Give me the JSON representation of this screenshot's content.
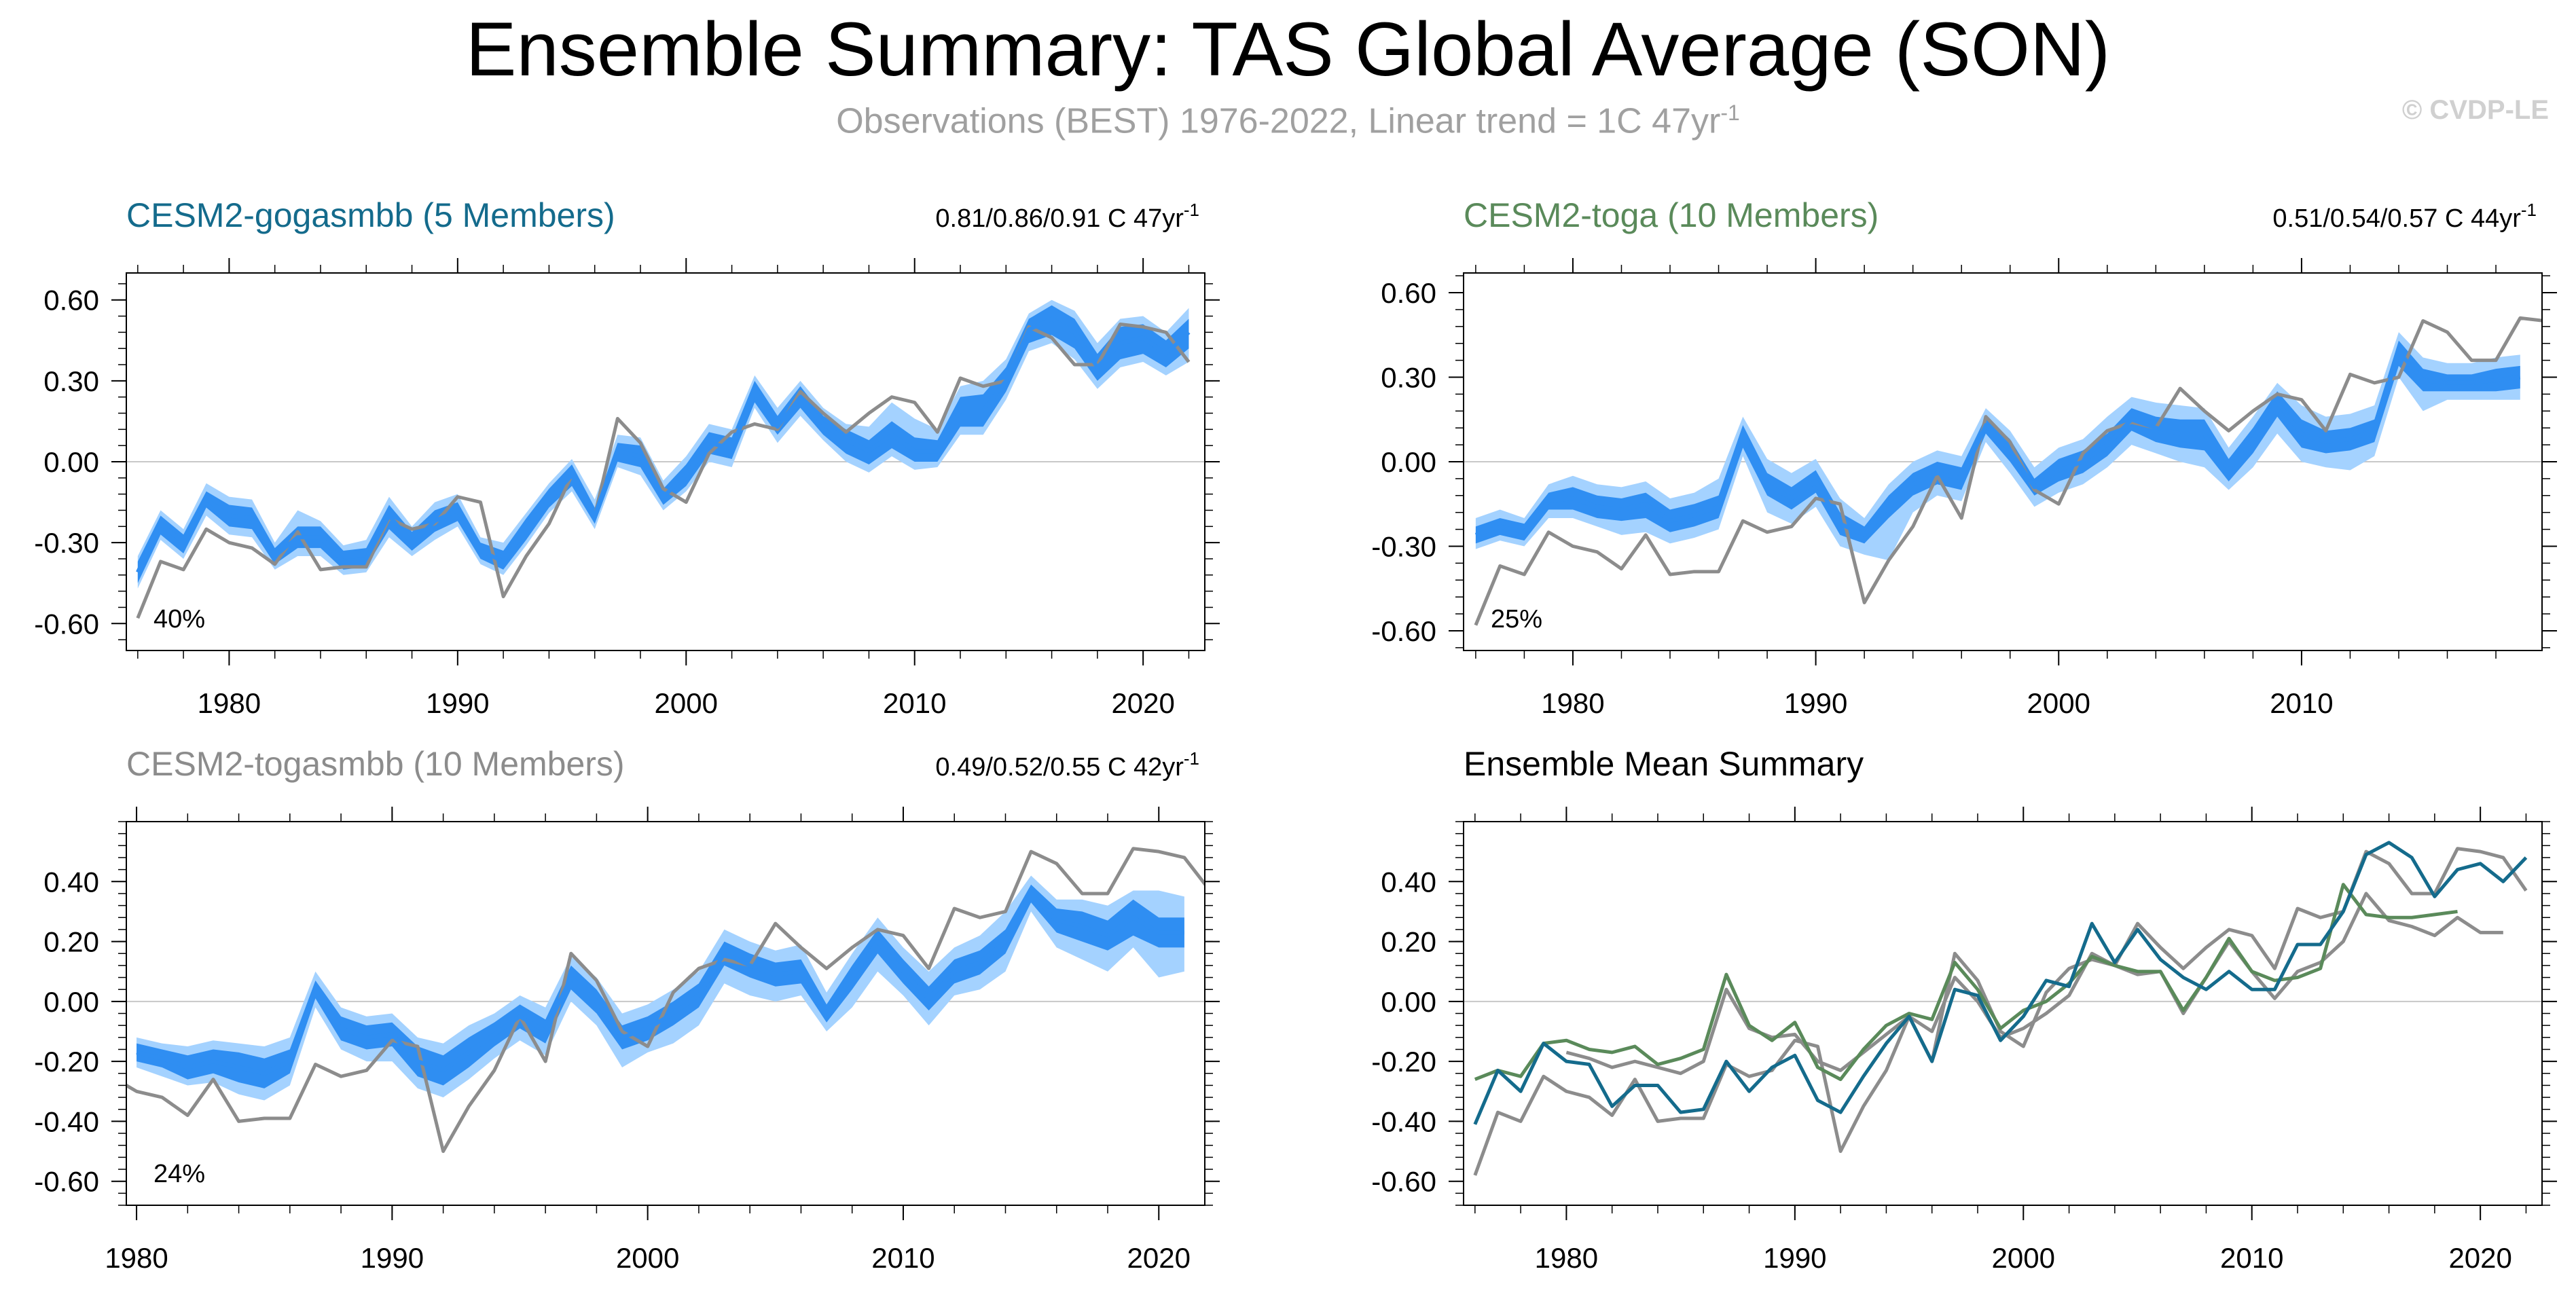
{
  "title": "Ensemble Summary: TAS Global Average (SON)",
  "subtitle": {
    "text": "Observations (BEST) 1976-2022, Linear trend = 1C 47yr",
    "sup": "-1"
  },
  "copyright": "© CVDP-LE",
  "colors": {
    "obs": "#8c8c8c",
    "band_outer": "#a4d2ff",
    "band_inner": "#2f8ef2",
    "zero_line": "#c8c8c8",
    "gogasmbb": "#146b8c",
    "toga": "#5a8a5a",
    "togasmbb": "#8c8c8c"
  },
  "chart_data": [
    {
      "id": "gogasmbb",
      "type": "line",
      "title": "CESM2-gogasmbb (5 Members)",
      "title_color": "#146b8c",
      "trend": "0.81/0.86/0.91 C 47yr",
      "trend_sup": "-1",
      "percent": "40%",
      "xlim": [
        1975.5,
        2022.7
      ],
      "ylim": [
        -0.7,
        0.7
      ],
      "yticks": [
        -0.6,
        -0.3,
        0.0,
        0.3,
        0.6
      ],
      "ytick_labels": [
        "-0.60",
        "-0.30",
        "0.00",
        "0.30",
        "0.60"
      ],
      "xticks": [
        1980,
        1990,
        2000,
        2010,
        2020
      ],
      "xtick_labels": [
        "1980",
        "1990",
        "2000",
        "2010",
        "2020"
      ],
      "obs_start": 1976,
      "obs": [
        -0.58,
        -0.37,
        -0.4,
        -0.25,
        -0.3,
        -0.32,
        -0.38,
        -0.26,
        -0.4,
        -0.39,
        -0.39,
        -0.21,
        -0.25,
        -0.23,
        -0.13,
        -0.15,
        -0.5,
        -0.35,
        -0.23,
        -0.05,
        -0.2,
        0.16,
        0.07,
        -0.1,
        -0.15,
        0.03,
        0.11,
        0.14,
        0.12,
        0.26,
        0.18,
        0.11,
        0.18,
        0.24,
        0.22,
        0.11,
        0.31,
        0.28,
        0.3,
        0.5,
        0.46,
        0.36,
        0.36,
        0.51,
        0.5,
        0.48,
        0.37
      ],
      "model_start": 1976,
      "model_mean": [
        -0.41,
        -0.23,
        -0.3,
        -0.14,
        -0.2,
        -0.21,
        -0.35,
        -0.28,
        -0.28,
        -0.37,
        -0.36,
        -0.2,
        -0.3,
        -0.22,
        -0.18,
        -0.33,
        -0.37,
        -0.25,
        -0.14,
        -0.05,
        -0.2,
        0.04,
        0.02,
        -0.13,
        -0.05,
        0.07,
        0.05,
        0.26,
        0.13,
        0.24,
        0.14,
        0.08,
        0.04,
        0.1,
        0.04,
        0.04,
        0.19,
        0.19,
        0.3,
        0.49,
        0.53,
        0.48,
        0.35,
        0.44,
        0.46,
        0.4,
        0.48
      ],
      "model_min": [
        -0.45,
        -0.27,
        -0.34,
        -0.17,
        -0.24,
        -0.25,
        -0.38,
        -0.32,
        -0.32,
        -0.4,
        -0.39,
        -0.25,
        -0.33,
        -0.26,
        -0.22,
        -0.36,
        -0.4,
        -0.29,
        -0.17,
        -0.09,
        -0.23,
        0.0,
        -0.02,
        -0.16,
        -0.09,
        0.03,
        0.01,
        0.22,
        0.1,
        0.2,
        0.1,
        0.03,
        -0.01,
        0.05,
        0.0,
        0.0,
        0.13,
        0.13,
        0.26,
        0.44,
        0.47,
        0.42,
        0.3,
        0.38,
        0.4,
        0.35,
        0.42
      ],
      "model_max": [
        -0.37,
        -0.2,
        -0.27,
        -0.11,
        -0.16,
        -0.17,
        -0.32,
        -0.24,
        -0.24,
        -0.33,
        -0.32,
        -0.16,
        -0.26,
        -0.18,
        -0.15,
        -0.3,
        -0.33,
        -0.21,
        -0.1,
        -0.01,
        -0.17,
        0.07,
        0.06,
        -0.1,
        -0.01,
        0.11,
        0.09,
        0.3,
        0.17,
        0.28,
        0.17,
        0.12,
        0.08,
        0.15,
        0.09,
        0.08,
        0.24,
        0.25,
        0.35,
        0.53,
        0.58,
        0.53,
        0.4,
        0.5,
        0.51,
        0.45,
        0.53
      ],
      "model_outer_min": [
        -0.47,
        -0.29,
        -0.36,
        -0.2,
        -0.27,
        -0.28,
        -0.4,
        -0.35,
        -0.35,
        -0.42,
        -0.41,
        -0.28,
        -0.35,
        -0.29,
        -0.24,
        -0.38,
        -0.42,
        -0.31,
        -0.19,
        -0.11,
        -0.25,
        -0.02,
        -0.05,
        -0.18,
        -0.11,
        0.0,
        -0.02,
        0.2,
        0.07,
        0.17,
        0.08,
        0.0,
        -0.04,
        0.02,
        -0.03,
        -0.02,
        0.1,
        0.1,
        0.23,
        0.41,
        0.44,
        0.38,
        0.27,
        0.35,
        0.37,
        0.32,
        0.37
      ],
      "model_outer_max": [
        -0.35,
        -0.18,
        -0.25,
        -0.08,
        -0.13,
        -0.14,
        -0.3,
        -0.18,
        -0.22,
        -0.31,
        -0.29,
        -0.13,
        -0.24,
        -0.15,
        -0.12,
        -0.28,
        -0.3,
        -0.19,
        -0.08,
        0.01,
        -0.14,
        0.1,
        0.09,
        -0.07,
        0.02,
        0.14,
        0.12,
        0.32,
        0.2,
        0.3,
        0.2,
        0.14,
        0.13,
        0.22,
        0.16,
        0.12,
        0.28,
        0.3,
        0.38,
        0.55,
        0.6,
        0.56,
        0.44,
        0.53,
        0.54,
        0.48,
        0.57
      ]
    },
    {
      "id": "toga",
      "type": "line",
      "title": "CESM2-toga (10 Members)",
      "title_color": "#5a8a5a",
      "trend": "0.51/0.54/0.57 C 44yr",
      "trend_sup": "-1",
      "percent": "25%",
      "xlim": [
        1975.5,
        2019.9
      ],
      "ylim": [
        -0.67,
        0.67
      ],
      "yticks": [
        -0.6,
        -0.3,
        0.0,
        0.3,
        0.6
      ],
      "ytick_labels": [
        "-0.60",
        "-0.30",
        "0.00",
        "0.30",
        "0.60"
      ],
      "xticks": [
        1980,
        1990,
        2000,
        2010
      ],
      "xtick_labels": [
        "1980",
        "1990",
        "2000",
        "2010"
      ],
      "obs_start": 1976,
      "obs": [
        -0.58,
        -0.37,
        -0.4,
        -0.25,
        -0.3,
        -0.32,
        -0.38,
        -0.26,
        -0.4,
        -0.39,
        -0.39,
        -0.21,
        -0.25,
        -0.23,
        -0.13,
        -0.15,
        -0.5,
        -0.35,
        -0.23,
        -0.05,
        -0.2,
        0.16,
        0.07,
        -0.1,
        -0.15,
        0.03,
        0.11,
        0.14,
        0.12,
        0.26,
        0.18,
        0.11,
        0.18,
        0.24,
        0.22,
        0.11,
        0.31,
        0.28,
        0.3,
        0.5,
        0.46,
        0.36,
        0.36,
        0.51,
        0.5
      ],
      "model_start": 1976,
      "model_mean": [
        -0.26,
        -0.23,
        -0.25,
        -0.14,
        -0.13,
        -0.16,
        -0.17,
        -0.15,
        -0.21,
        -0.19,
        -0.16,
        0.09,
        -0.08,
        -0.13,
        -0.07,
        -0.22,
        -0.26,
        -0.16,
        -0.08,
        -0.04,
        -0.06,
        0.13,
        0.04,
        -0.09,
        -0.03,
        0.0,
        0.06,
        0.15,
        0.12,
        0.1,
        0.1,
        -0.03,
        0.08,
        0.21,
        0.1,
        0.07,
        0.08,
        0.11,
        0.39,
        0.29,
        0.28,
        0.28,
        0.29,
        0.3
      ],
      "model_min": [
        -0.29,
        -0.26,
        -0.28,
        -0.17,
        -0.17,
        -0.2,
        -0.21,
        -0.2,
        -0.25,
        -0.23,
        -0.2,
        0.05,
        -0.12,
        -0.17,
        -0.11,
        -0.26,
        -0.29,
        -0.2,
        -0.12,
        -0.08,
        -0.1,
        0.1,
        0.0,
        -0.12,
        -0.07,
        -0.04,
        0.02,
        0.11,
        0.07,
        0.05,
        0.04,
        -0.07,
        0.03,
        0.16,
        0.05,
        0.03,
        0.04,
        0.07,
        0.34,
        0.25,
        0.25,
        0.25,
        0.25,
        0.26
      ],
      "model_max": [
        -0.23,
        -0.2,
        -0.22,
        -0.11,
        -0.09,
        -0.12,
        -0.13,
        -0.11,
        -0.17,
        -0.15,
        -0.12,
        0.13,
        -0.04,
        -0.09,
        -0.03,
        -0.18,
        -0.23,
        -0.12,
        -0.04,
        0.0,
        -0.02,
        0.16,
        0.08,
        -0.06,
        0.01,
        0.04,
        0.1,
        0.19,
        0.16,
        0.15,
        0.15,
        0.01,
        0.12,
        0.25,
        0.15,
        0.11,
        0.12,
        0.15,
        0.43,
        0.33,
        0.31,
        0.31,
        0.33,
        0.34
      ],
      "model_outer_min": [
        -0.31,
        -0.28,
        -0.3,
        -0.2,
        -0.2,
        -0.23,
        -0.26,
        -0.25,
        -0.29,
        -0.27,
        -0.24,
        0.02,
        -0.18,
        -0.22,
        -0.16,
        -0.3,
        -0.33,
        -0.35,
        -0.18,
        -0.12,
        -0.14,
        0.07,
        -0.04,
        -0.16,
        -0.11,
        -0.08,
        -0.02,
        0.06,
        0.03,
        0.0,
        -0.02,
        -0.1,
        -0.02,
        0.1,
        0.0,
        -0.02,
        -0.03,
        0.02,
        0.3,
        0.18,
        0.22,
        0.22,
        0.22,
        0.22
      ],
      "model_outer_max": [
        -0.2,
        -0.17,
        -0.2,
        -0.08,
        -0.05,
        -0.08,
        -0.09,
        -0.07,
        -0.13,
        -0.11,
        -0.06,
        0.16,
        0.01,
        -0.04,
        0.01,
        -0.13,
        -0.2,
        -0.08,
        0.0,
        0.04,
        0.02,
        0.19,
        0.11,
        -0.02,
        0.05,
        0.08,
        0.16,
        0.23,
        0.21,
        0.2,
        0.19,
        0.05,
        0.16,
        0.28,
        0.2,
        0.16,
        0.17,
        0.2,
        0.46,
        0.37,
        0.35,
        0.35,
        0.37,
        0.38
      ]
    },
    {
      "id": "togasmbb",
      "type": "line",
      "title": "CESM2-togasmbb (10 Members)",
      "title_color": "#8c8c8c",
      "trend": "0.49/0.52/0.55 C 42yr",
      "trend_sup": "-1",
      "percent": "24%",
      "xlim": [
        1979.6,
        2021.8
      ],
      "ylim": [
        -0.68,
        0.6
      ],
      "yticks": [
        -0.6,
        -0.4,
        -0.2,
        0.0,
        0.2,
        0.4
      ],
      "ytick_labels": [
        "-0.60",
        "-0.40",
        "-0.20",
        "0.00",
        "0.20",
        "0.40"
      ],
      "xticks": [
        1980,
        1990,
        2000,
        2010,
        2020
      ],
      "xtick_labels": [
        "1980",
        "1990",
        "2000",
        "2010",
        "2020"
      ],
      "obs_start": 1976,
      "obs": [
        -0.58,
        -0.37,
        -0.4,
        -0.25,
        -0.3,
        -0.32,
        -0.38,
        -0.26,
        -0.4,
        -0.39,
        -0.39,
        -0.21,
        -0.25,
        -0.23,
        -0.13,
        -0.15,
        -0.5,
        -0.35,
        -0.23,
        -0.05,
        -0.2,
        0.16,
        0.07,
        -0.1,
        -0.15,
        0.03,
        0.11,
        0.14,
        0.12,
        0.26,
        0.18,
        0.11,
        0.18,
        0.24,
        0.22,
        0.11,
        0.31,
        0.28,
        0.3,
        0.5,
        0.46,
        0.36,
        0.36,
        0.51,
        0.5,
        0.48,
        0.37
      ],
      "model_start": 1980,
      "model_mean": [
        -0.17,
        -0.19,
        -0.22,
        -0.2,
        -0.22,
        -0.24,
        -0.2,
        0.04,
        -0.09,
        -0.12,
        -0.11,
        -0.2,
        -0.23,
        -0.17,
        -0.11,
        -0.05,
        -0.1,
        0.08,
        0.0,
        -0.12,
        -0.09,
        -0.04,
        0.02,
        0.16,
        0.12,
        0.09,
        0.1,
        -0.04,
        0.08,
        0.2,
        0.1,
        0.01,
        0.1,
        0.13,
        0.2,
        0.36,
        0.27,
        0.25,
        0.22,
        0.28,
        0.23,
        0.23
      ],
      "model_min": [
        -0.2,
        -0.22,
        -0.26,
        -0.24,
        -0.27,
        -0.29,
        -0.24,
        0.01,
        -0.13,
        -0.16,
        -0.15,
        -0.25,
        -0.28,
        -0.22,
        -0.15,
        -0.09,
        -0.14,
        0.04,
        -0.04,
        -0.16,
        -0.13,
        -0.08,
        -0.02,
        0.12,
        0.08,
        0.05,
        0.06,
        -0.07,
        0.04,
        0.16,
        0.06,
        -0.03,
        0.06,
        0.09,
        0.16,
        0.33,
        0.23,
        0.2,
        0.17,
        0.22,
        0.18,
        0.18
      ],
      "model_max": [
        -0.14,
        -0.16,
        -0.18,
        -0.16,
        -0.17,
        -0.19,
        -0.16,
        0.07,
        -0.05,
        -0.08,
        -0.07,
        -0.15,
        -0.18,
        -0.12,
        -0.07,
        -0.01,
        -0.06,
        0.12,
        0.04,
        -0.08,
        -0.05,
        0.0,
        0.06,
        0.2,
        0.16,
        0.13,
        0.14,
        -0.01,
        0.12,
        0.24,
        0.14,
        0.05,
        0.14,
        0.17,
        0.24,
        0.39,
        0.31,
        0.3,
        0.27,
        0.34,
        0.28,
        0.28
      ],
      "model_outer_min": [
        -0.22,
        -0.25,
        -0.28,
        -0.27,
        -0.31,
        -0.33,
        -0.28,
        -0.02,
        -0.16,
        -0.2,
        -0.2,
        -0.29,
        -0.32,
        -0.26,
        -0.19,
        -0.13,
        -0.18,
        0.0,
        -0.08,
        -0.22,
        -0.17,
        -0.14,
        -0.08,
        0.06,
        0.02,
        0.0,
        0.02,
        -0.1,
        -0.02,
        0.1,
        0.02,
        -0.08,
        0.02,
        0.04,
        0.1,
        0.3,
        0.18,
        0.14,
        0.1,
        0.18,
        0.08,
        0.1
      ],
      "model_outer_max": [
        -0.12,
        -0.14,
        -0.15,
        -0.13,
        -0.14,
        -0.15,
        -0.12,
        0.1,
        -0.02,
        -0.05,
        -0.04,
        -0.12,
        -0.14,
        -0.08,
        -0.04,
        0.02,
        -0.02,
        0.15,
        0.08,
        -0.04,
        -0.01,
        0.04,
        0.1,
        0.24,
        0.2,
        0.17,
        0.19,
        0.03,
        0.16,
        0.28,
        0.18,
        0.1,
        0.18,
        0.22,
        0.3,
        0.42,
        0.34,
        0.34,
        0.32,
        0.37,
        0.37,
        0.35
      ]
    },
    {
      "id": "summary",
      "type": "line",
      "title": "Ensemble Mean Summary",
      "title_color": "#000000",
      "xlim": [
        1975.5,
        2022.7
      ],
      "ylim": [
        -0.68,
        0.6
      ],
      "yticks": [
        -0.6,
        -0.4,
        -0.2,
        0.0,
        0.2,
        0.4
      ],
      "ytick_labels": [
        "-0.60",
        "-0.40",
        "-0.20",
        "0.00",
        "0.20",
        "0.40"
      ],
      "xticks": [
        1980,
        1990,
        2000,
        2010,
        2020
      ],
      "xtick_labels": [
        "1980",
        "1990",
        "2000",
        "2010",
        "2020"
      ],
      "series": [
        {
          "name": "Observations (BEST)",
          "color": "#8c8c8c",
          "start": 1976,
          "values": [
            -0.58,
            -0.37,
            -0.4,
            -0.25,
            -0.3,
            -0.32,
            -0.38,
            -0.26,
            -0.4,
            -0.39,
            -0.39,
            -0.21,
            -0.25,
            -0.23,
            -0.13,
            -0.15,
            -0.5,
            -0.35,
            -0.23,
            -0.05,
            -0.2,
            0.16,
            0.07,
            -0.1,
            -0.15,
            0.03,
            0.11,
            0.14,
            0.12,
            0.26,
            0.18,
            0.11,
            0.18,
            0.24,
            0.22,
            0.11,
            0.31,
            0.28,
            0.3,
            0.5,
            0.46,
            0.36,
            0.36,
            0.51,
            0.5,
            0.48,
            0.37
          ]
        },
        {
          "name": "CESM2-togasmbb",
          "color": "#8c8c8c",
          "start": 1980,
          "values": [
            -0.17,
            -0.19,
            -0.22,
            -0.2,
            -0.22,
            -0.24,
            -0.2,
            0.04,
            -0.09,
            -0.12,
            -0.11,
            -0.2,
            -0.23,
            -0.17,
            -0.11,
            -0.05,
            -0.1,
            0.08,
            0.0,
            -0.12,
            -0.09,
            -0.04,
            0.02,
            0.16,
            0.12,
            0.09,
            0.1,
            -0.04,
            0.08,
            0.2,
            0.1,
            0.01,
            0.1,
            0.13,
            0.2,
            0.36,
            0.27,
            0.25,
            0.22,
            0.28,
            0.23,
            0.23
          ]
        },
        {
          "name": "CESM2-toga",
          "color": "#5a8a5a",
          "start": 1976,
          "values": [
            -0.26,
            -0.23,
            -0.25,
            -0.14,
            -0.13,
            -0.16,
            -0.17,
            -0.15,
            -0.21,
            -0.19,
            -0.16,
            0.09,
            -0.08,
            -0.13,
            -0.07,
            -0.22,
            -0.26,
            -0.16,
            -0.08,
            -0.04,
            -0.06,
            0.13,
            0.04,
            -0.09,
            -0.03,
            0.0,
            0.06,
            0.15,
            0.12,
            0.1,
            0.1,
            -0.03,
            0.08,
            0.21,
            0.1,
            0.07,
            0.08,
            0.11,
            0.39,
            0.29,
            0.28,
            0.28,
            0.29,
            0.3
          ]
        },
        {
          "name": "CESM2-gogasmbb",
          "color": "#146b8c",
          "start": 1976,
          "values": [
            -0.41,
            -0.23,
            -0.3,
            -0.14,
            -0.2,
            -0.21,
            -0.35,
            -0.28,
            -0.28,
            -0.37,
            -0.36,
            -0.2,
            -0.3,
            -0.22,
            -0.18,
            -0.33,
            -0.37,
            -0.25,
            -0.14,
            -0.05,
            -0.2,
            0.04,
            0.02,
            -0.13,
            -0.05,
            0.07,
            0.05,
            0.26,
            0.13,
            0.24,
            0.14,
            0.08,
            0.04,
            0.1,
            0.04,
            0.04,
            0.19,
            0.19,
            0.3,
            0.49,
            0.53,
            0.48,
            0.35,
            0.44,
            0.46,
            0.4,
            0.48
          ]
        }
      ]
    }
  ]
}
